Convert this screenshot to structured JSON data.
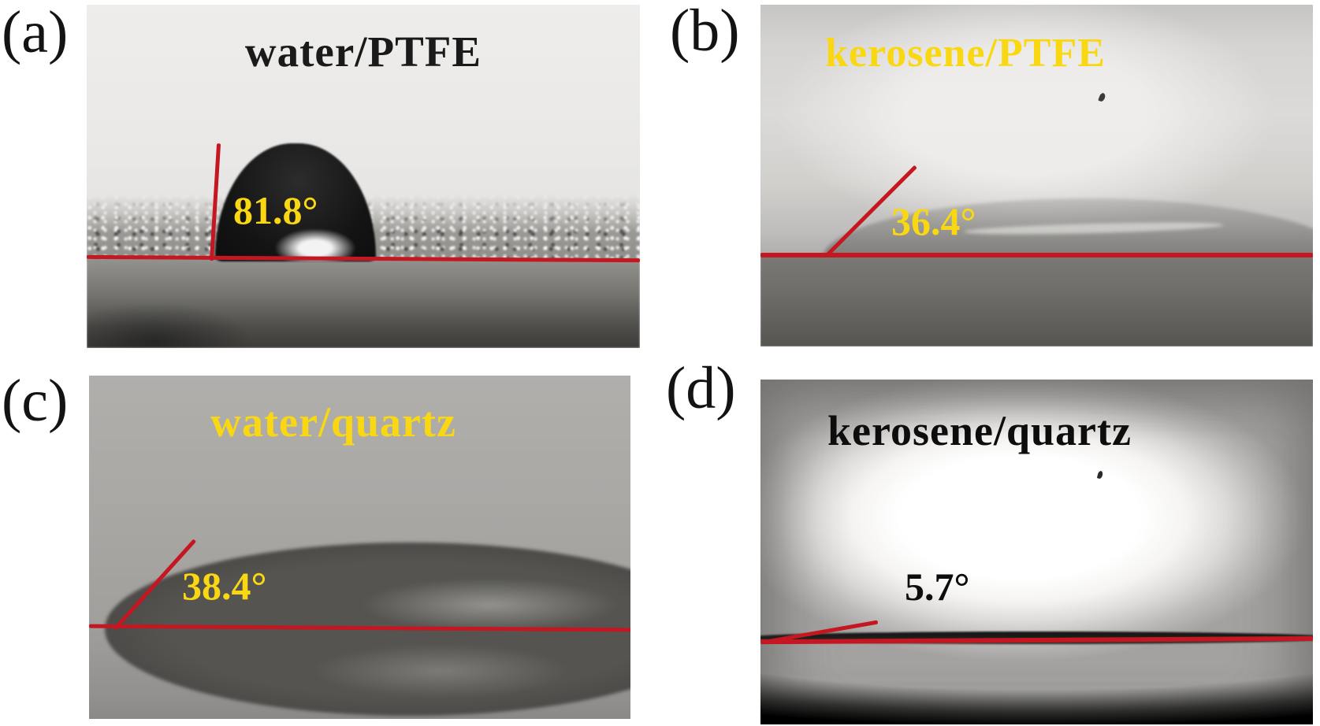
{
  "figure": {
    "panels": [
      {
        "label": "(a)",
        "title": "water/PTFE",
        "angle_label": "81.8°",
        "angle_value": 81.8
      },
      {
        "label": "(b)",
        "title": "kerosene/PTFE",
        "angle_label": "36.4°",
        "angle_value": 36.4
      },
      {
        "label": "(c)",
        "title": "water/quartz",
        "angle_label": "38.4°",
        "angle_value": 38.4
      },
      {
        "label": "(d)",
        "title": "kerosene/quartz",
        "angle_label": "5.7°",
        "angle_value": 5.7
      }
    ],
    "colors": {
      "annotation_red": "#c41722",
      "annotation_yellow": "#f9d813",
      "title_black": "#1a1a1a",
      "background": "#ffffff"
    }
  }
}
